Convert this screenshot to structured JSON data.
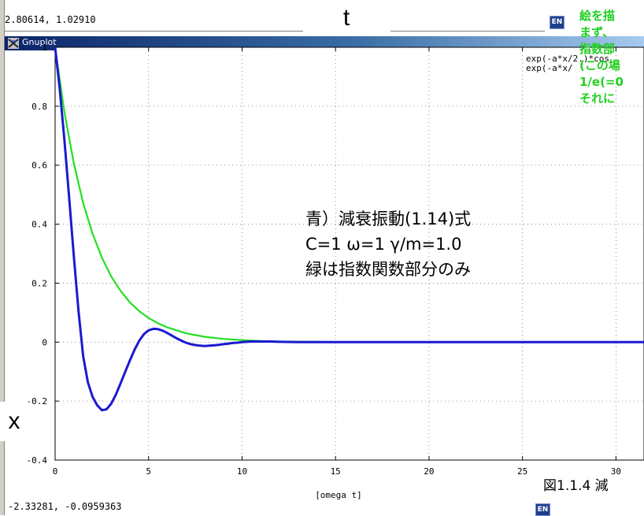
{
  "window": {
    "title": "Gnuplot",
    "coords_top": "2.80614,  1.02910",
    "coords_bottom": "-2.33281, -0.0959363",
    "ime_badge": "EN"
  },
  "overlay": {
    "t_label": "t",
    "x_label": "x",
    "green_note_lines": [
      "絵を描",
      "まず、",
      "指数部",
      "(この場",
      "1/e(=0",
      "それに"
    ],
    "annotation_lines": [
      "青）減衰振動(1.14)式",
      "C=1 ω=1  γ/m=1.0",
      "緑は指数関数部分のみ"
    ],
    "caption": "図1.1.4  減"
  },
  "chart_data": {
    "type": "line",
    "title": "",
    "xlabel": "[omega t]",
    "ylabel": "",
    "xlim": [
      0,
      31.5
    ],
    "ylim": [
      -0.4,
      1
    ],
    "grid": true,
    "legend_position": "top-right",
    "x_ticks": [
      0,
      5,
      10,
      15,
      20,
      25,
      30
    ],
    "y_ticks": [
      1,
      0.8,
      0.6,
      0.4,
      0.2,
      0,
      -0.2,
      -0.4
    ],
    "y_tick_labels": [
      "1",
      "0.8",
      "0.6",
      "0.4",
      "0.2",
      "0",
      "-0.2",
      "-0.4"
    ],
    "x_tick_labels": [
      "0",
      "5",
      "10",
      "15",
      "20",
      "25",
      "30"
    ],
    "series": [
      {
        "name": "exp(-a*x/2.)*cos",
        "color": "#1a1acf",
        "x": [
          0,
          0.25,
          0.5,
          0.75,
          1,
          1.25,
          1.5,
          1.75,
          2,
          2.25,
          2.5,
          2.75,
          3,
          3.25,
          3.5,
          3.75,
          4,
          4.25,
          4.5,
          4.75,
          5,
          5.25,
          5.5,
          5.75,
          6,
          6.25,
          6.5,
          6.75,
          7,
          7.25,
          7.5,
          7.75,
          8,
          8.25,
          8.5,
          8.75,
          9,
          9.25,
          9.5,
          9.75,
          10,
          10.5,
          11,
          11.5,
          12,
          13,
          14,
          15,
          16,
          18,
          20,
          22,
          24,
          26,
          28,
          30,
          31.5
        ],
        "y": [
          1.0,
          0.858,
          0.683,
          0.491,
          0.294,
          0.106,
          -0.047,
          -0.136,
          -0.185,
          -0.214,
          -0.231,
          -0.228,
          -0.209,
          -0.178,
          -0.14,
          -0.101,
          -0.062,
          -0.026,
          0.005,
          0.027,
          0.04,
          0.045,
          0.044,
          0.039,
          0.031,
          0.022,
          0.013,
          0.005,
          -0.002,
          -0.007,
          -0.01,
          -0.012,
          -0.013,
          -0.012,
          -0.011,
          -0.009,
          -0.007,
          -0.005,
          -0.003,
          -0.002,
          0.0,
          0.002,
          0.002,
          0.002,
          0.001,
          0.0,
          0.0,
          0.0,
          0.0,
          0.0,
          0.0,
          0.0,
          0.0,
          0.0,
          0.0,
          0.0,
          0.0
        ]
      },
      {
        "name": "exp(-a*x/",
        "color": "#22e022",
        "x": [
          0,
          0.5,
          1,
          1.5,
          2,
          2.5,
          3,
          3.5,
          4,
          4.5,
          5,
          5.5,
          6,
          7,
          8,
          9,
          10,
          11,
          12,
          14,
          16,
          18,
          20,
          24,
          28,
          31.5
        ],
        "y": [
          1.0,
          0.779,
          0.607,
          0.472,
          0.368,
          0.287,
          0.223,
          0.174,
          0.135,
          0.105,
          0.082,
          0.064,
          0.05,
          0.03,
          0.018,
          0.011,
          0.007,
          0.004,
          0.002,
          0.001,
          0.0,
          0.0,
          0.0,
          0.0,
          0.0,
          0.0
        ]
      }
    ]
  }
}
